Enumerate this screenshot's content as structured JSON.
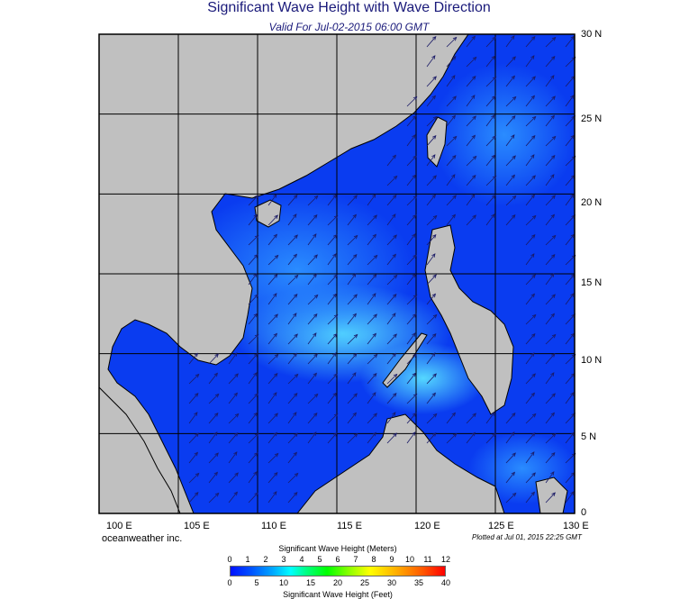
{
  "title": "Significant Wave Height with Wave Direction",
  "subtitle": "Valid For Jul-02-2015 06:00 GMT",
  "credit": "oceanweather inc.",
  "plotted": "Plotted at Jul 01, 2015 22:25 GMT",
  "x_axis_labels": [
    "100 E",
    "105 E",
    "110 E",
    "115 E",
    "120 E",
    "125 E",
    "130 E"
  ],
  "y_axis_labels": [
    "30 N",
    "25 N",
    "20 N",
    "15 N",
    "10 N",
    "5 N",
    "0"
  ],
  "colorbar": {
    "title_top": "Significant Wave Height (Meters)",
    "title_bottom": "Significant Wave Height (Feet)",
    "meters_ticks": [
      "0",
      "1",
      "2",
      "3",
      "4",
      "5",
      "6",
      "7",
      "8",
      "9",
      "10",
      "11",
      "12"
    ],
    "feet_ticks": [
      "0",
      "5",
      "10",
      "15",
      "20",
      "25",
      "30",
      "35",
      "40"
    ]
  },
  "colors": {
    "land": "#c0c0c0",
    "sea_low": "#0033ee",
    "sea_mid": "#1a6fff",
    "sea_high": "#44ccff",
    "arrow": "#1a1a66",
    "grid": "#000000"
  },
  "wind_direction_note_free": "",
  "map": {
    "lon_range": [
      100,
      130
    ],
    "lat_range": [
      0,
      30
    ]
  }
}
